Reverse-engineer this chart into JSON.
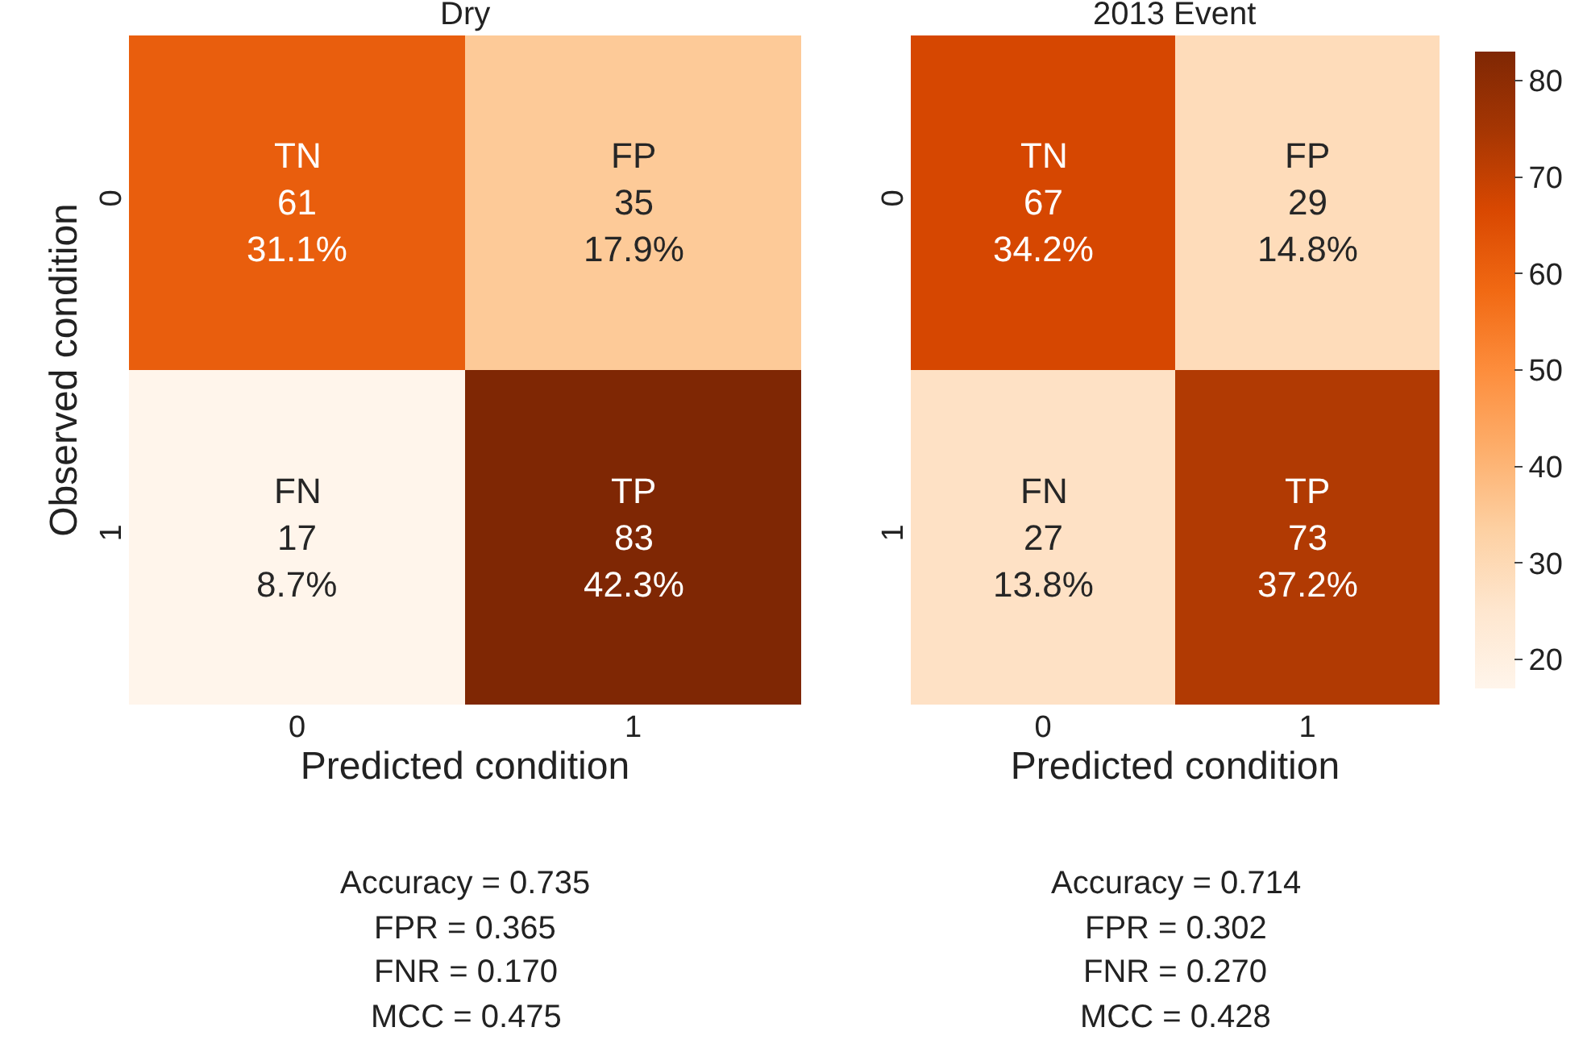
{
  "chart_data": [
    {
      "type": "heatmap",
      "title": "Dry",
      "xlabel": "Predicted condition",
      "ylabel": "Observed condition",
      "categories": [
        "0",
        "1"
      ],
      "y_categories": [
        "0",
        "1"
      ],
      "cells": [
        [
          61,
          35
        ],
        [
          17,
          83
        ]
      ],
      "data_labels": true,
      "annotations": [
        "TN",
        "31.1%",
        "FP",
        "17.9%",
        "FN",
        "8.7%",
        "TP",
        "42.3%",
        "Accuracy = 0.735",
        "FPR = 0.365",
        "FNR = 0.170",
        "MCC = 0.475"
      ]
    },
    {
      "type": "heatmap",
      "title": "2013 Event",
      "xlabel": "Predicted condition",
      "categories": [
        "0",
        "1"
      ],
      "y_categories": [
        "0",
        "1"
      ],
      "cells": [
        [
          67,
          29
        ],
        [
          27,
          73
        ]
      ],
      "data_labels": true,
      "clim": [
        17,
        83
      ],
      "cticks": [
        20,
        30,
        40,
        50,
        60,
        70,
        80
      ],
      "annotations": [
        "TN",
        "34.2%",
        "FP",
        "14.8%",
        "FN",
        "13.8%",
        "TP",
        "37.2%",
        "Accuracy = 0.714",
        "FPR = 0.302",
        "FNR = 0.270",
        "MCC = 0.428"
      ]
    }
  ]
}
